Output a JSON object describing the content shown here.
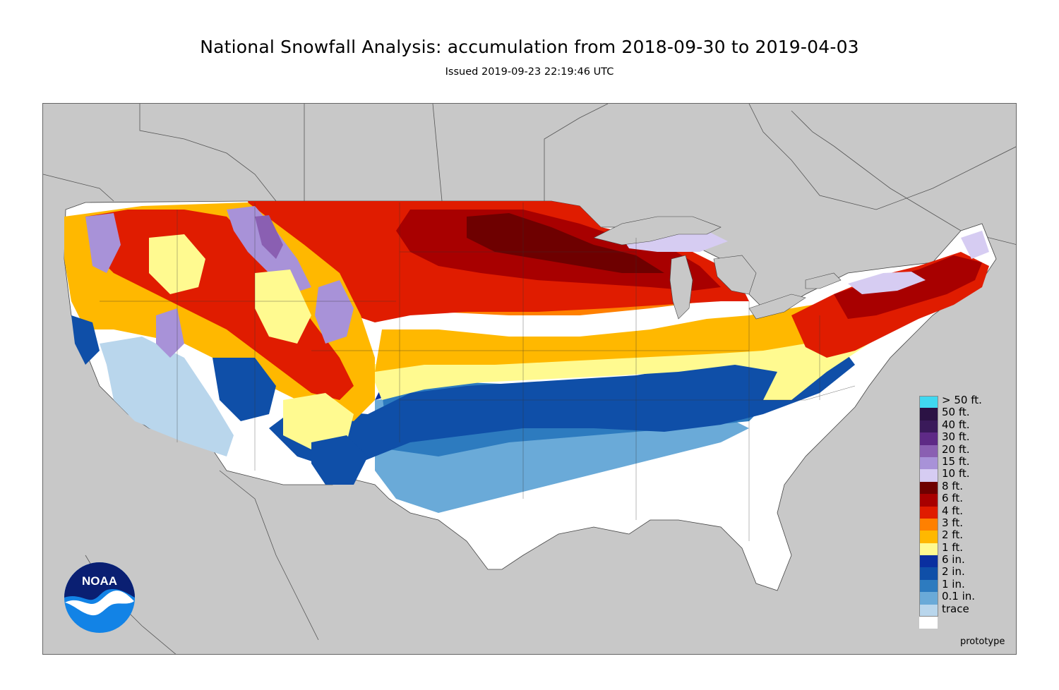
{
  "header": {
    "title": "National Snowfall Analysis: accumulation from 2018-09-30 to 2019-04-03",
    "subtitle": "Issued 2019-09-23 22:19:46 UTC"
  },
  "legend": [
    {
      "label": "> 50 ft.",
      "color": "#40d8f0"
    },
    {
      "label": "50 ft.",
      "color": "#2b1244"
    },
    {
      "label": "40 ft.",
      "color": "#3a1a5a"
    },
    {
      "label": "30 ft.",
      "color": "#5e2a86"
    },
    {
      "label": "20 ft.",
      "color": "#8a5fb2"
    },
    {
      "label": "15 ft.",
      "color": "#a892d8"
    },
    {
      "label": "10 ft.",
      "color": "#d6ccf2"
    },
    {
      "label": "8 ft.",
      "color": "#6e0000"
    },
    {
      "label": "6 ft.",
      "color": "#a80000"
    },
    {
      "label": "4 ft.",
      "color": "#e01c00"
    },
    {
      "label": "3 ft.",
      "color": "#ff8000"
    },
    {
      "label": "2 ft.",
      "color": "#ffb800"
    },
    {
      "label": "1 ft.",
      "color": "#fffa90"
    },
    {
      "label": "6 in.",
      "color": "#0a2fa0"
    },
    {
      "label": "2 in.",
      "color": "#0f4fa8"
    },
    {
      "label": "1 in.",
      "color": "#2d7bbf"
    },
    {
      "label": "0.1 in.",
      "color": "#6aaad8"
    },
    {
      "label": "trace",
      "color": "#b9d6ec"
    },
    {
      "label": "",
      "color": "#ffffff"
    }
  ],
  "footer": {
    "prototype": "prototype"
  },
  "logo": {
    "text": "NOAA",
    "icon": "noaa-logo-icon"
  },
  "map": {
    "background_color": "#c8c8c8"
  }
}
